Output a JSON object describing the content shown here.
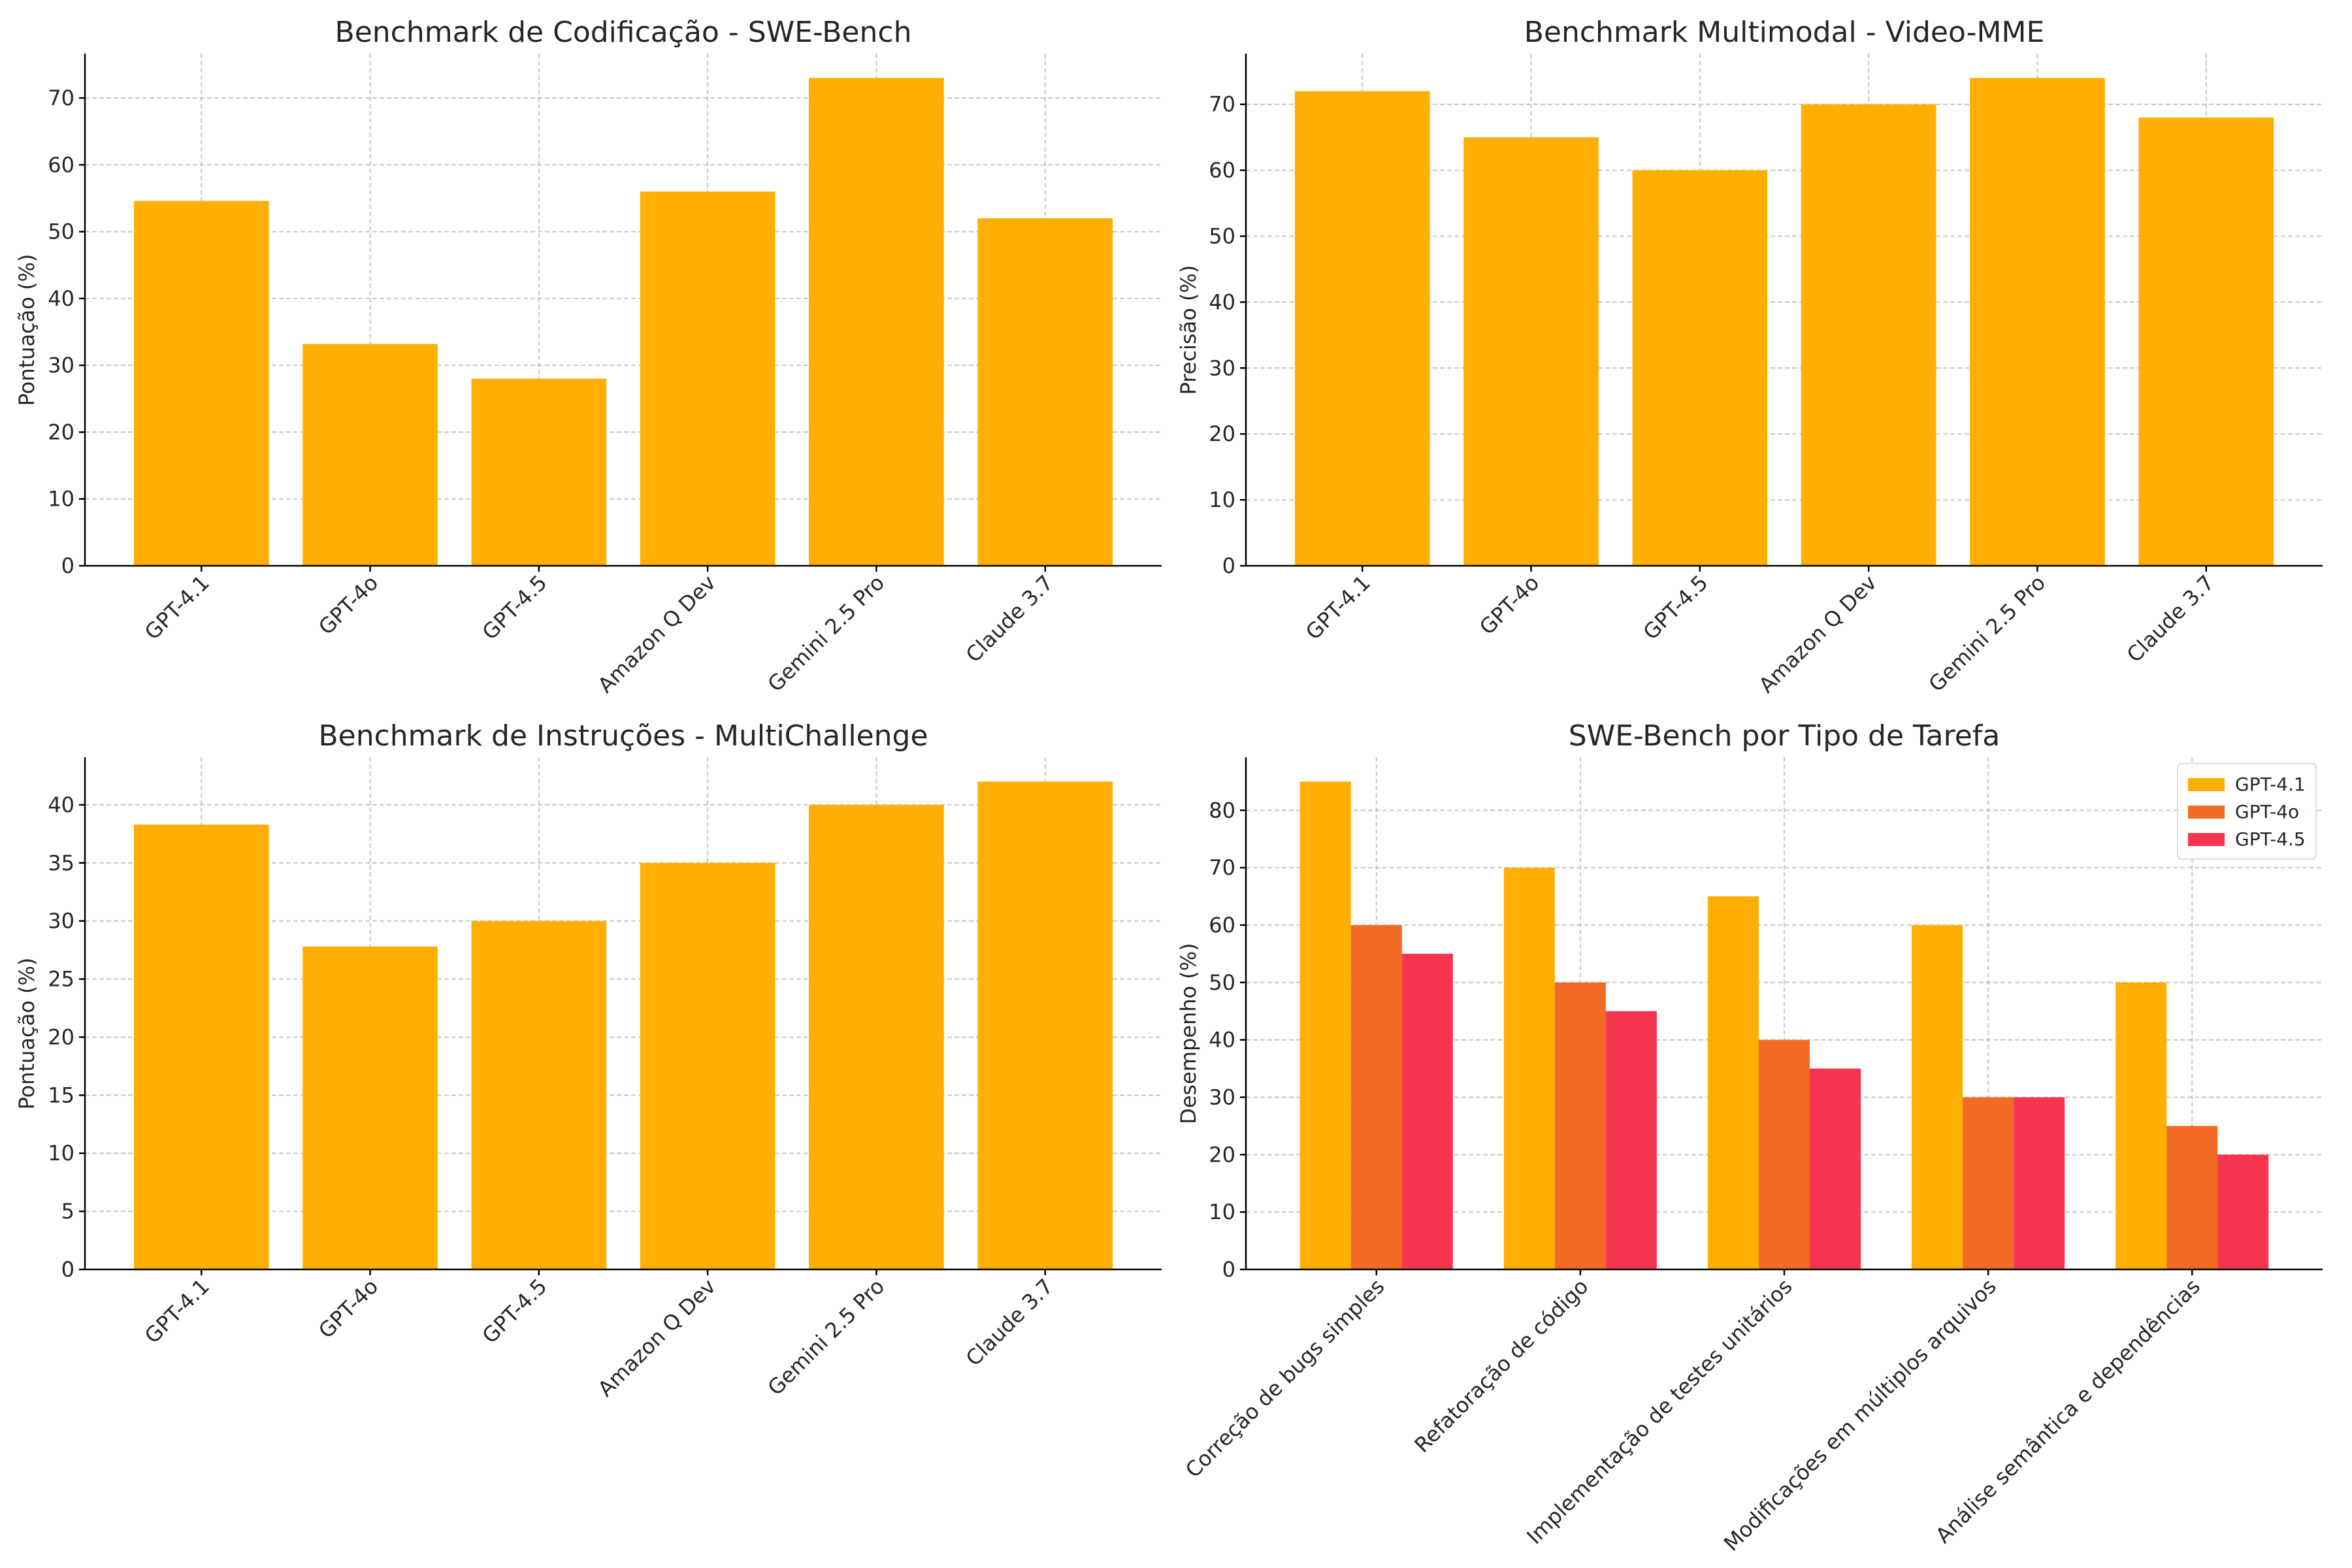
{
  "colors": {
    "gpt41": "#FFAE03",
    "gpt4o": "#F26A24",
    "gpt45": "#F5354E"
  },
  "chart_data": [
    {
      "type": "bar",
      "title": "Benchmark de Codificação - SWE-Bench",
      "xlabel": "",
      "ylabel": "Pontuação (%)",
      "categories": [
        "GPT-4.1",
        "GPT-4o",
        "GPT-4.5",
        "Amazon Q Dev",
        "Gemini 2.5 Pro",
        "Claude 3.7"
      ],
      "values": [
        54.6,
        33.2,
        28,
        56,
        73,
        52
      ],
      "ylim": [
        0,
        76.65
      ],
      "yticks": [
        0,
        10,
        20,
        30,
        40,
        50,
        60,
        70
      ],
      "grid": true
    },
    {
      "type": "bar",
      "title": "Benchmark Multimodal - Video-MME",
      "xlabel": "",
      "ylabel": "Precisão (%)",
      "categories": [
        "GPT-4.1",
        "GPT-4o",
        "GPT-4.5",
        "Amazon Q Dev",
        "Gemini 2.5 Pro",
        "Claude 3.7"
      ],
      "values": [
        72,
        65,
        60,
        70,
        74,
        68
      ],
      "ylim": [
        0,
        77.7
      ],
      "yticks": [
        0,
        10,
        20,
        30,
        40,
        50,
        60,
        70
      ],
      "grid": true
    },
    {
      "type": "bar",
      "title": "Benchmark de Instruções - MultiChallenge",
      "xlabel": "",
      "ylabel": "Pontuação (%)",
      "categories": [
        "GPT-4.1",
        "GPT-4o",
        "GPT-4.5",
        "Amazon Q Dev",
        "Gemini 2.5 Pro",
        "Claude 3.7"
      ],
      "values": [
        38.3,
        27.8,
        30,
        35,
        40,
        42
      ],
      "ylim": [
        0,
        44.1
      ],
      "yticks": [
        0,
        5,
        10,
        15,
        20,
        25,
        30,
        35,
        40
      ],
      "grid": true
    },
    {
      "type": "bar",
      "title": "SWE-Bench por Tipo de Tarefa",
      "xlabel": "",
      "ylabel": "Desempenho (%)",
      "categories": [
        "Correção de bugs simples",
        "Refatoração de código",
        "Implementação de testes unitários",
        "Modificações em múltiplos arquivos",
        "Análise semântica e dependências"
      ],
      "series": [
        {
          "name": "GPT-4.1",
          "values": [
            85,
            70,
            65,
            60,
            50
          ]
        },
        {
          "name": "GPT-4o",
          "values": [
            60,
            50,
            40,
            30,
            25
          ]
        },
        {
          "name": "GPT-4.5",
          "values": [
            55,
            45,
            35,
            30,
            20
          ]
        }
      ],
      "ylim": [
        0,
        89.25
      ],
      "yticks": [
        0,
        10,
        20,
        30,
        40,
        50,
        60,
        70,
        80
      ],
      "legend": "top-right",
      "grid": true
    }
  ]
}
